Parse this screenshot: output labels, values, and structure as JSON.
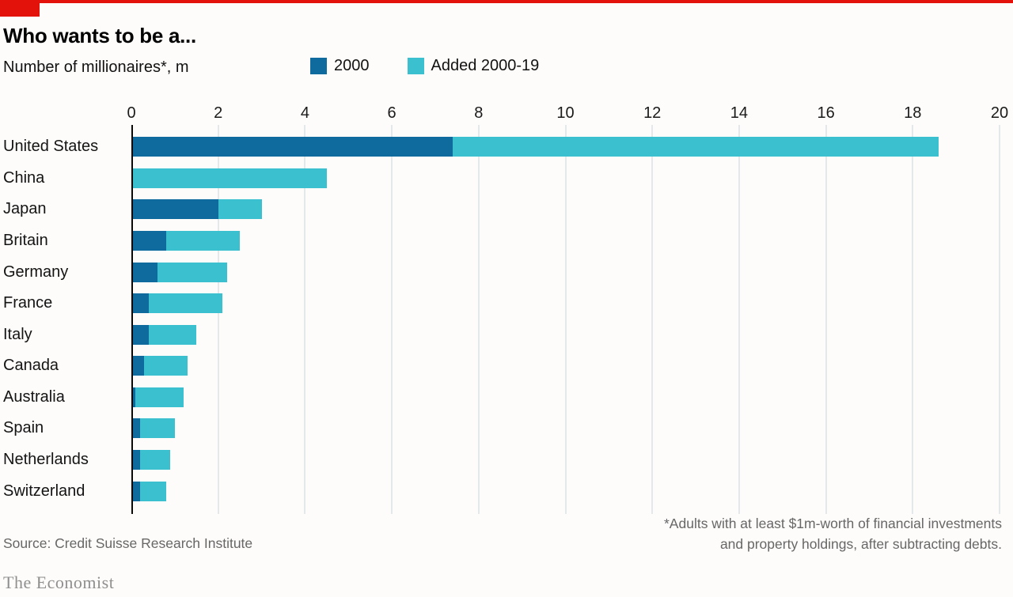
{
  "header": {
    "title": "Who wants to be a...",
    "subtitle": "Number of millionaires*, m"
  },
  "legend": [
    {
      "label": "2000",
      "color": "#0f6a9d"
    },
    {
      "label": "Added 2000-19",
      "color": "#3bc0cf"
    }
  ],
  "colors": {
    "accent_red": "#e3120b",
    "series_2000": "#0f6a9d",
    "series_added": "#3bc0cf",
    "gridline": "#c9d3da",
    "axis": "#0a0a0a"
  },
  "chart_data": {
    "type": "bar",
    "orientation": "horizontal",
    "stacked": true,
    "title": "Who wants to be a...",
    "subtitle": "Number of millionaires*, m",
    "categories": [
      "United States",
      "China",
      "Japan",
      "Britain",
      "Germany",
      "France",
      "Italy",
      "Canada",
      "Australia",
      "Spain",
      "Netherlands",
      "Switzerland"
    ],
    "series": [
      {
        "name": "2000",
        "color": "#0f6a9d",
        "values": [
          7.4,
          0,
          2.0,
          0.8,
          0.6,
          0.4,
          0.4,
          0.3,
          0.1,
          0.2,
          0.2,
          0.2
        ]
      },
      {
        "name": "Added 2000-19",
        "color": "#3bc0cf",
        "values": [
          11.2,
          4.5,
          1.0,
          1.7,
          1.6,
          1.7,
          1.1,
          1.0,
          1.1,
          0.8,
          0.7,
          0.6
        ]
      }
    ],
    "totals": [
      18.6,
      4.5,
      3.0,
      2.5,
      2.2,
      2.1,
      1.5,
      1.3,
      1.2,
      1.0,
      0.9,
      0.8
    ],
    "xlabel": "",
    "ylabel": "",
    "xlim": [
      0,
      20
    ],
    "xticks": [
      0,
      2,
      4,
      6,
      8,
      10,
      12,
      14,
      16,
      18,
      20
    ],
    "grid": true,
    "legend_position": "top"
  },
  "footer": {
    "source": "Source: Credit Suisse Research Institute",
    "footnote_line1": "*Adults with at least $1m-worth of financial investments",
    "footnote_line2": "and property holdings, after subtracting debts.",
    "brand": "The Economist"
  }
}
